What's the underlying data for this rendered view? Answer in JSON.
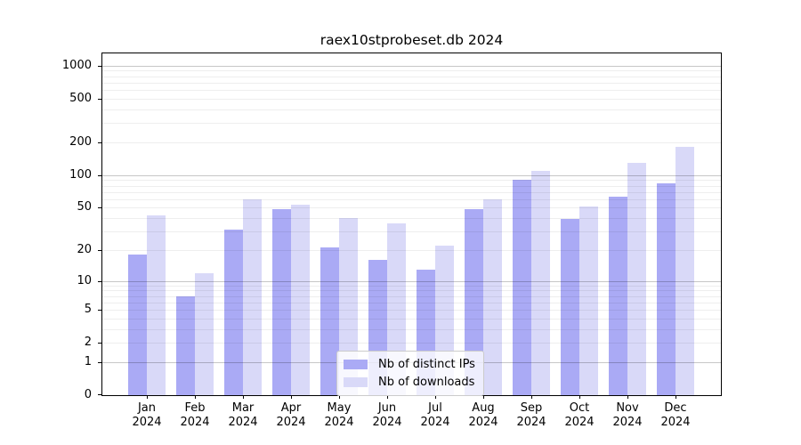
{
  "chart_data": {
    "type": "bar",
    "title": "raex10stprobeset.db 2024",
    "xlabel": "",
    "ylabel": "",
    "y_scale": "log1p",
    "grid": true,
    "categories": [
      "Jan",
      "Feb",
      "Mar",
      "Apr",
      "May",
      "Jun",
      "Jul",
      "Aug",
      "Sep",
      "Oct",
      "Nov",
      "Dec"
    ],
    "x_tick_year": "2024",
    "series": [
      {
        "name": "Nb of distinct IPs",
        "color": "#aaaaf5",
        "values": [
          18,
          7,
          31,
          48,
          21,
          16,
          13,
          48,
          90,
          39,
          63,
          84
        ]
      },
      {
        "name": "Nb of downloads",
        "color": "#d9d9f8",
        "values": [
          42,
          12,
          60,
          53,
          40,
          36,
          22,
          60,
          110,
          51,
          130,
          180
        ]
      }
    ],
    "y_ticks": [
      0,
      1,
      2,
      5,
      10,
      20,
      50,
      100,
      200,
      500,
      1000
    ],
    "y_major_gridlines": [
      1,
      10,
      100,
      1000
    ],
    "y_minor_gridlines": [
      2,
      3,
      4,
      5,
      6,
      7,
      8,
      9,
      20,
      30,
      40,
      50,
      60,
      70,
      80,
      90,
      200,
      300,
      400,
      500,
      600,
      700,
      800,
      900
    ],
    "ylim": [
      0,
      1292
    ],
    "legend_position": "lower center (inside plot)"
  }
}
